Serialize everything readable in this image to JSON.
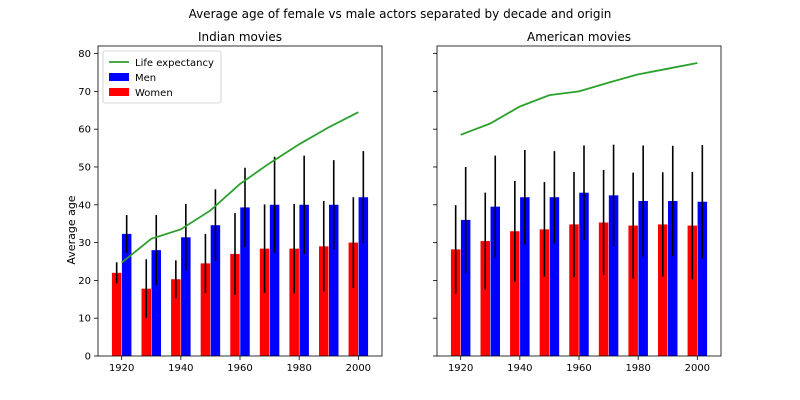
{
  "chart_data": {
    "title": "Average age of female vs male actors separated by decade and origin",
    "type": "bar",
    "ylabel": "Average age",
    "ylim": [
      0,
      82
    ],
    "xlim": [
      1912,
      2008
    ],
    "xticks": [
      "1920",
      "1940",
      "1960",
      "1980",
      "2000"
    ],
    "yticks": [
      "0",
      "10",
      "20",
      "30",
      "40",
      "50",
      "60",
      "70",
      "80"
    ],
    "legend_placement": "top-left",
    "legend": [
      "Life expectancy",
      "Men",
      "Women"
    ],
    "colors": {
      "men": "#0000ff",
      "women": "#ff0000",
      "life": "#2ca02c",
      "err": "#000000"
    },
    "panels": [
      {
        "title": "Indian movies",
        "show_ylabel": true,
        "show_legend": true,
        "decades": [
          1920,
          1930,
          1940,
          1950,
          1960,
          1970,
          1980,
          1990,
          2000
        ],
        "women": [
          22,
          17.8,
          20.3,
          24.5,
          27,
          28.4,
          28.4,
          29,
          30
        ],
        "women_err": [
          2.8,
          7.8,
          5,
          7.8,
          10.8,
          11.7,
          11.8,
          12,
          12
        ],
        "men": [
          32.3,
          28,
          31.4,
          34.6,
          39.3,
          40,
          40,
          40,
          42
        ],
        "men_err": [
          5,
          9.3,
          8.8,
          9.5,
          10.5,
          12.7,
          13,
          11.8,
          12.2
        ],
        "life_expectancy": [
          24.7,
          31,
          33.5,
          38.5,
          45.5,
          51,
          56,
          60.5,
          64.5
        ]
      },
      {
        "title": "American movies",
        "show_ylabel": false,
        "show_legend": false,
        "decades": [
          1920,
          1930,
          1940,
          1950,
          1960,
          1970,
          1980,
          1990,
          2000
        ],
        "women": [
          28.2,
          30.4,
          33,
          33.5,
          34.8,
          35.3,
          34.5,
          34.8,
          34.5
        ],
        "women_err": [
          11.7,
          12.8,
          13.3,
          12.5,
          13.9,
          13.9,
          14,
          13.8,
          14.2
        ],
        "men": [
          36,
          39.5,
          42,
          42,
          43.2,
          42.5,
          41,
          41,
          40.8
        ],
        "men_err": [
          14,
          13.5,
          12.5,
          12.2,
          12.5,
          13.4,
          14.7,
          14.6,
          15
        ],
        "life_expectancy": [
          58.5,
          61.5,
          66,
          69,
          70,
          72.3,
          74.5,
          76,
          77.5
        ]
      }
    ]
  }
}
